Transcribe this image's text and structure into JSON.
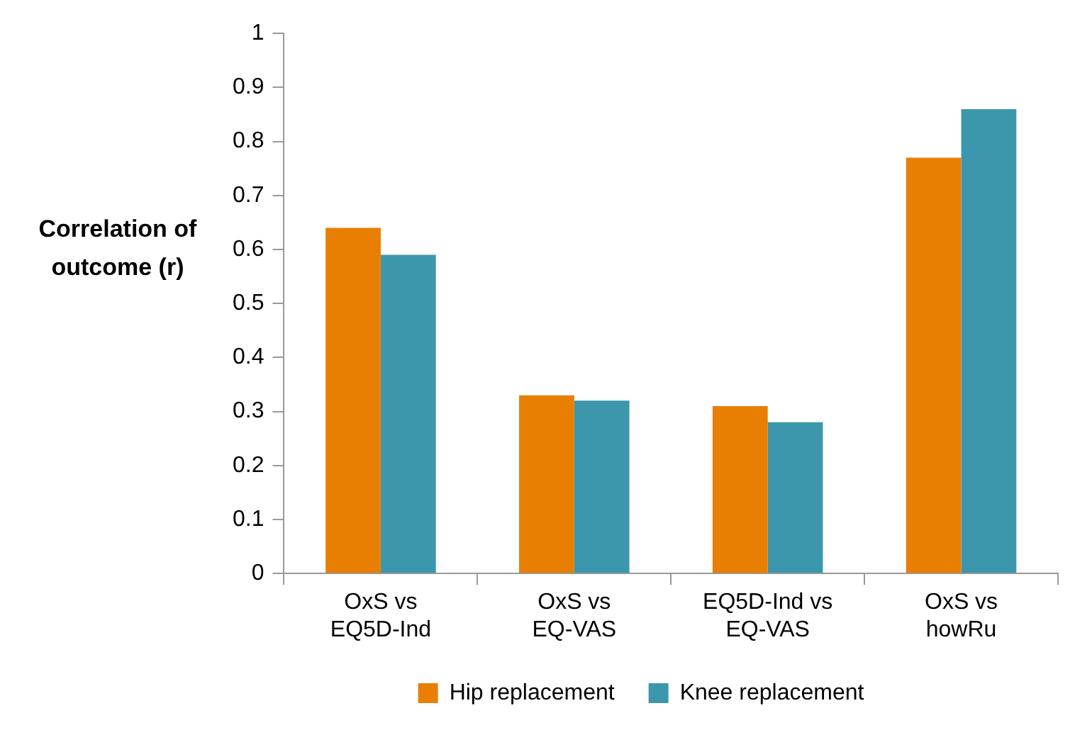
{
  "chart_data": {
    "type": "bar",
    "ylabel": "Correlation of outcome (r)",
    "categories": [
      "OxS vs EQ5D-Ind",
      "OxS vs EQ-VAS",
      "EQ5D-Ind vs EQ-VAS",
      "OxS vs howRu"
    ],
    "series": [
      {
        "name": "Hip replacement",
        "color": "#e87f03",
        "values": [
          0.64,
          0.33,
          0.31,
          0.77
        ]
      },
      {
        "name": "Knee replacement",
        "color": "#3c97ac",
        "values": [
          0.59,
          0.32,
          0.28,
          0.86
        ]
      }
    ],
    "ylim": [
      0,
      1
    ],
    "yticks": [
      0,
      0.1,
      0.2,
      0.3,
      0.4,
      0.5,
      0.6,
      0.7,
      0.8,
      0.9,
      1
    ],
    "grid": false,
    "legend": "bottom"
  }
}
